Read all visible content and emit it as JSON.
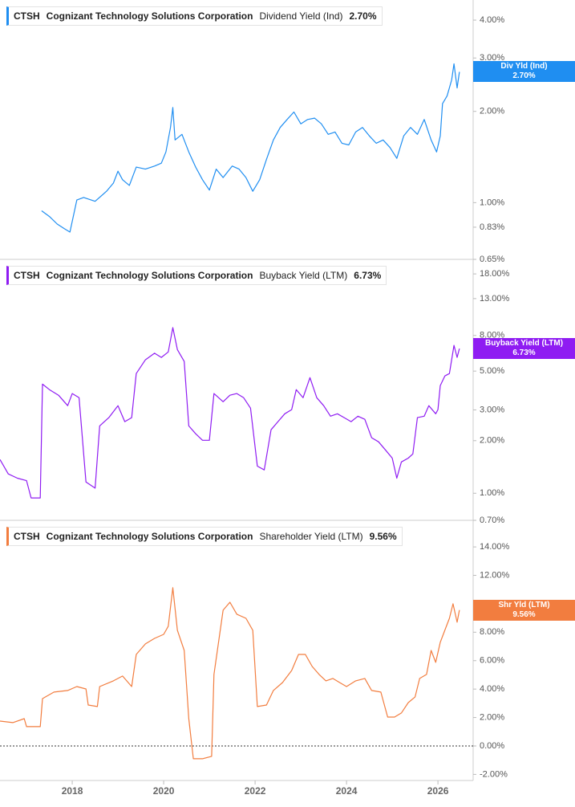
{
  "chart_data": [
    {
      "type": "line",
      "log_scale": true,
      "ticker": "CTSH",
      "company": "Cognizant Technology Solutions Corporation",
      "xlim": [
        2016.42,
        2026.77
      ],
      "ylim": [
        0.65,
        4.66
      ],
      "yticks": [
        {
          "value": 4,
          "label": "4.00%"
        },
        {
          "value": 3,
          "label": "3.00%"
        },
        {
          "value": 2,
          "label": "2.00%"
        },
        {
          "value": 1,
          "label": "1.00%"
        },
        {
          "value": 0.83,
          "label": "0.83%"
        },
        {
          "value": 0.65,
          "label": "0.65%"
        }
      ],
      "x": [
        2017.33,
        2017.5,
        2017.67,
        2017.83,
        2017.95,
        2018.1,
        2018.25,
        2018.5,
        2018.75,
        2018.9,
        2019.0,
        2019.1,
        2019.25,
        2019.4,
        2019.6,
        2019.8,
        2019.95,
        2020.05,
        2020.15,
        2020.2,
        2020.25,
        2020.4,
        2020.55,
        2020.7,
        2020.85,
        2021.0,
        2021.15,
        2021.3,
        2021.5,
        2021.65,
        2021.8,
        2021.95,
        2022.1,
        2022.25,
        2022.4,
        2022.55,
        2022.7,
        2022.85,
        2023.0,
        2023.15,
        2023.3,
        2023.45,
        2023.6,
        2023.75,
        2023.9,
        2024.05,
        2024.2,
        2024.35,
        2024.5,
        2024.65,
        2024.8,
        2024.95,
        2025.1,
        2025.25,
        2025.4,
        2025.55,
        2025.7,
        2025.85,
        2025.97,
        2026.05,
        2026.1,
        2026.2,
        2026.3,
        2026.35,
        2026.42,
        2026.47
      ],
      "series": [
        {
          "name": "Dividend Yield (Ind)",
          "tag": "Div Yld (Ind)",
          "color": "#1f8ef1",
          "last_value_label": "2.70%",
          "values": [
            0.94,
            0.9,
            0.85,
            0.82,
            0.8,
            1.02,
            1.04,
            1.01,
            1.09,
            1.16,
            1.27,
            1.19,
            1.14,
            1.31,
            1.29,
            1.32,
            1.35,
            1.47,
            1.77,
            2.06,
            1.61,
            1.68,
            1.47,
            1.31,
            1.19,
            1.1,
            1.29,
            1.21,
            1.32,
            1.29,
            1.21,
            1.09,
            1.19,
            1.39,
            1.61,
            1.77,
            1.88,
            1.99,
            1.82,
            1.88,
            1.9,
            1.82,
            1.68,
            1.71,
            1.57,
            1.55,
            1.71,
            1.77,
            1.66,
            1.57,
            1.61,
            1.52,
            1.4,
            1.66,
            1.77,
            1.68,
            1.88,
            1.61,
            1.47,
            1.66,
            2.12,
            2.25,
            2.54,
            2.87,
            2.39,
            2.7
          ]
        }
      ]
    },
    {
      "type": "line",
      "log_scale": true,
      "ticker": "CTSH",
      "company": "Cognizant Technology Solutions Corporation",
      "xlim": [
        2016.42,
        2026.77
      ],
      "ylim": [
        0.7,
        21.8
      ],
      "yticks": [
        {
          "value": 18,
          "label": "18.00%"
        },
        {
          "value": 13,
          "label": "13.00%"
        },
        {
          "value": 8,
          "label": "8.00%"
        },
        {
          "value": 5,
          "label": "5.00%"
        },
        {
          "value": 3,
          "label": "3.00%"
        },
        {
          "value": 2,
          "label": "2.00%"
        },
        {
          "value": 1,
          "label": "1.00%"
        },
        {
          "value": 0.7,
          "label": "0.70%"
        }
      ],
      "x": [
        2016.42,
        2016.6,
        2016.8,
        2017.0,
        2017.1,
        2017.3,
        2017.35,
        2017.5,
        2017.7,
        2017.9,
        2018.0,
        2018.15,
        2018.3,
        2018.5,
        2018.6,
        2018.8,
        2019.0,
        2019.15,
        2019.3,
        2019.4,
        2019.6,
        2019.8,
        2019.95,
        2020.1,
        2020.2,
        2020.3,
        2020.45,
        2020.55,
        2020.7,
        2020.85,
        2021.0,
        2021.1,
        2021.3,
        2021.45,
        2021.6,
        2021.75,
        2021.9,
        2022.05,
        2022.2,
        2022.35,
        2022.5,
        2022.65,
        2022.8,
        2022.9,
        2023.05,
        2023.2,
        2023.35,
        2023.5,
        2023.65,
        2023.8,
        2023.95,
        2024.1,
        2024.25,
        2024.4,
        2024.55,
        2024.7,
        2024.85,
        2025.0,
        2025.1,
        2025.2,
        2025.35,
        2025.45,
        2025.55,
        2025.7,
        2025.8,
        2025.95,
        2026.0,
        2026.05,
        2026.15,
        2026.25,
        2026.35,
        2026.42,
        2026.47
      ],
      "series": [
        {
          "name": "Buyback Yield (LTM)",
          "tag": "Buyback Yield (LTM)",
          "color": "#8f1cf2",
          "last_value_label": "6.73%",
          "values": [
            1.56,
            1.29,
            1.22,
            1.18,
            0.94,
            0.94,
            4.21,
            3.92,
            3.64,
            3.17,
            3.72,
            3.52,
            1.16,
            1.07,
            2.43,
            2.71,
            3.17,
            2.57,
            2.71,
            4.84,
            5.8,
            6.33,
            5.99,
            6.44,
            8.87,
            6.64,
            5.68,
            2.43,
            2.19,
            2.01,
            2.01,
            3.72,
            3.34,
            3.64,
            3.72,
            3.52,
            3.07,
            1.43,
            1.36,
            2.31,
            2.57,
            2.85,
            3.01,
            3.92,
            3.52,
            4.59,
            3.52,
            3.17,
            2.76,
            2.85,
            2.71,
            2.57,
            2.76,
            2.65,
            2.08,
            1.97,
            1.77,
            1.59,
            1.22,
            1.51,
            1.59,
            1.68,
            2.71,
            2.76,
            3.17,
            2.85,
            3.01,
            4.13,
            4.69,
            4.84,
            7.02,
            5.99,
            6.73
          ]
        }
      ]
    },
    {
      "type": "line",
      "log_scale": false,
      "zero_line": true,
      "ticker": "CTSH",
      "company": "Cognizant Technology Solutions Corporation",
      "xlim": [
        2016.42,
        2026.77
      ],
      "ylim": [
        -2.43,
        15.87
      ],
      "xticks": [
        2018,
        2020,
        2022,
        2024,
        2026
      ],
      "yticks": [
        {
          "value": 14,
          "label": "14.00%"
        },
        {
          "value": 12,
          "label": "12.00%"
        },
        {
          "value": 10,
          "label": "10.00%"
        },
        {
          "value": 8,
          "label": "8.00%"
        },
        {
          "value": 6,
          "label": "6.00%"
        },
        {
          "value": 4,
          "label": "4.00%"
        },
        {
          "value": 2,
          "label": "2.00%"
        },
        {
          "value": 0,
          "label": "0.00%"
        },
        {
          "value": -2,
          "label": "-2.00%"
        }
      ],
      "x": [
        2016.42,
        2016.7,
        2016.95,
        2017.0,
        2017.3,
        2017.35,
        2017.6,
        2017.9,
        2018.1,
        2018.3,
        2018.35,
        2018.55,
        2018.6,
        2018.9,
        2019.1,
        2019.3,
        2019.4,
        2019.6,
        2019.8,
        2020.0,
        2020.1,
        2020.2,
        2020.3,
        2020.45,
        2020.55,
        2020.65,
        2020.85,
        2021.05,
        2021.1,
        2021.3,
        2021.45,
        2021.6,
        2021.8,
        2021.95,
        2022.05,
        2022.25,
        2022.4,
        2022.6,
        2022.8,
        2022.95,
        2023.1,
        2023.25,
        2023.4,
        2023.55,
        2023.7,
        2023.85,
        2024.0,
        2024.2,
        2024.4,
        2024.55,
        2024.75,
        2024.9,
        2025.05,
        2025.2,
        2025.35,
        2025.5,
        2025.6,
        2025.75,
        2025.85,
        2025.95,
        2026.05,
        2026.15,
        2026.25,
        2026.33,
        2026.42,
        2026.47
      ],
      "series": [
        {
          "name": "Shareholder Yield (LTM)",
          "tag": "Shr Yld (LTM)",
          "color": "#f27d3f",
          "last_value_label": "9.56%",
          "values": [
            1.75,
            1.64,
            1.92,
            1.36,
            1.36,
            3.33,
            3.79,
            3.9,
            4.18,
            4.01,
            2.88,
            2.77,
            4.18,
            4.58,
            4.92,
            4.18,
            6.44,
            7.18,
            7.57,
            7.85,
            8.42,
            11.13,
            8.14,
            6.72,
            1.92,
            -0.9,
            -0.9,
            -0.73,
            5.03,
            9.55,
            10.11,
            9.27,
            8.98,
            8.14,
            2.77,
            2.88,
            3.9,
            4.46,
            5.31,
            6.44,
            6.44,
            5.59,
            5.03,
            4.58,
            4.75,
            4.46,
            4.18,
            4.58,
            4.75,
            3.9,
            3.79,
            2.03,
            2.03,
            2.32,
            3.05,
            3.45,
            4.75,
            5.03,
            6.72,
            5.88,
            7.29,
            8.14,
            8.98,
            10.0,
            8.7,
            9.56
          ]
        }
      ]
    }
  ]
}
